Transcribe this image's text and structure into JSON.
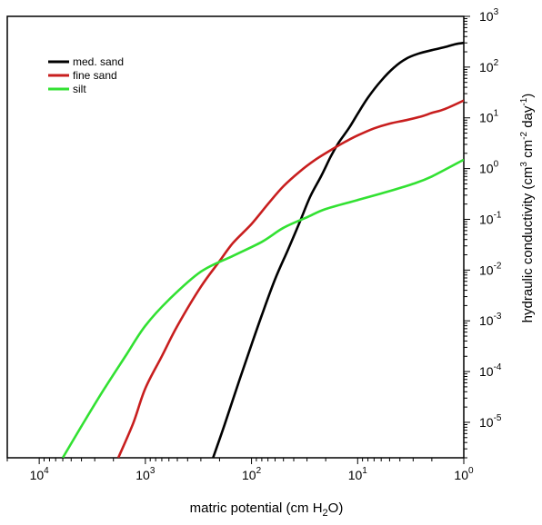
{
  "chart_data": {
    "type": "line",
    "xlabel_parts": [
      "matric potential (cm H",
      "2",
      "O)"
    ],
    "ylabel_parts": [
      "hydraulic conductivity (cm",
      "3",
      " cm",
      "-2",
      " day",
      "-1",
      ")"
    ],
    "x_scale": "log",
    "x_reversed": true,
    "y_scale": "log",
    "xlim": [
      20000,
      1
    ],
    "ylim": [
      2e-06,
      1000
    ],
    "x_ticks": [
      {
        "base": "10",
        "exp": "4",
        "value": 10000
      },
      {
        "base": "10",
        "exp": "3",
        "value": 1000
      },
      {
        "base": "10",
        "exp": "2",
        "value": 100
      },
      {
        "base": "10",
        "exp": "1",
        "value": 10
      },
      {
        "base": "10",
        "exp": "0",
        "value": 1
      }
    ],
    "y_ticks": [
      {
        "base": "10",
        "exp": "3",
        "value": 1000
      },
      {
        "base": "10",
        "exp": "2",
        "value": 100
      },
      {
        "base": "10",
        "exp": "1",
        "value": 10
      },
      {
        "base": "10",
        "exp": "0",
        "value": 1
      },
      {
        "base": "10",
        "exp": "-1",
        "value": 0.1
      },
      {
        "base": "10",
        "exp": "-2",
        "value": 0.01
      },
      {
        "base": "10",
        "exp": "-3",
        "value": 0.001
      },
      {
        "base": "10",
        "exp": "-4",
        "value": 0.0001
      },
      {
        "base": "10",
        "exp": "-5",
        "value": 1e-05
      }
    ],
    "grid": false,
    "legend_position": "top-left",
    "series": [
      {
        "name": "med. sand",
        "color": "#000000",
        "x": [
          230,
          180,
          130,
          100,
          80,
          60,
          45,
          35,
          28,
          22,
          18,
          15,
          12,
          10,
          8,
          6,
          4.5,
          3.5,
          2.7,
          2,
          1.5,
          1.2,
          1
        ],
        "y": [
          2e-06,
          8.8e-06,
          6.8e-05,
          0.00034,
          0.00129,
          0.0066,
          0.026,
          0.09,
          0.28,
          0.72,
          1.7,
          3.3,
          6.4,
          12,
          25,
          54,
          100,
          146,
          183,
          216,
          248,
          283,
          300
        ]
      },
      {
        "name": "fine sand",
        "color": "#c81e1e",
        "x": [
          1800,
          1300,
          1000,
          700,
          500,
          300,
          200,
          150,
          100,
          70,
          50,
          35,
          25,
          18,
          13,
          10,
          7,
          5,
          3.5,
          2.5,
          2,
          1.5,
          1
        ],
        "y": [
          2e-06,
          9.7e-06,
          4.7e-05,
          0.0002,
          0.00079,
          0.0047,
          0.015,
          0.034,
          0.081,
          0.2,
          0.45,
          0.88,
          1.5,
          2.3,
          3.4,
          4.5,
          6.2,
          7.7,
          9,
          10.7,
          12.5,
          15,
          22
        ]
      },
      {
        "name": "silt",
        "color": "#32e132",
        "x": [
          6000,
          4000,
          2500,
          1500,
          1000,
          600,
          300,
          150,
          80,
          50,
          30,
          20,
          10,
          5,
          3,
          2,
          1
        ],
        "y": [
          2e-06,
          8.4e-06,
          4.2e-05,
          0.00022,
          0.0008,
          0.0026,
          0.0093,
          0.019,
          0.036,
          0.068,
          0.11,
          0.16,
          0.24,
          0.36,
          0.5,
          0.7,
          1.5
        ]
      }
    ]
  }
}
